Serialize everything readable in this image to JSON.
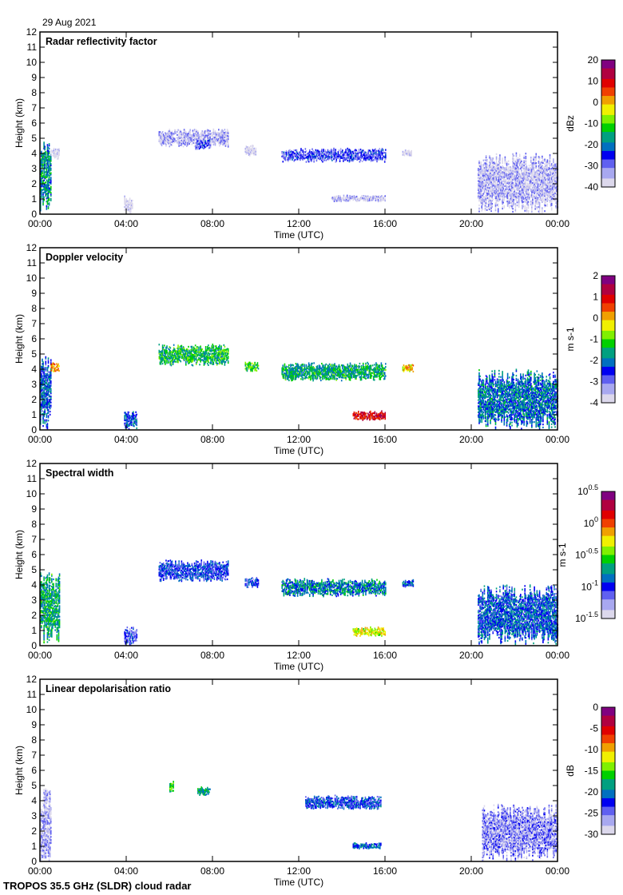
{
  "date": "29 Aug 2021",
  "footer": "TROPOS 35.5 GHz (SLDR) cloud radar",
  "colormap": [
    "#dcd8ec",
    "#a8a8f0",
    "#6060f0",
    "#0000f0",
    "#0070c0",
    "#00a080",
    "#00d000",
    "#80f000",
    "#f0f000",
    "#f0a000",
    "#f04000",
    "#e00000",
    "#b00040",
    "#800080"
  ],
  "chart_data": [
    {
      "type": "heatmap",
      "title": "Radar reflectivity factor",
      "xlabel": "Time (UTC)",
      "ylabel": "Height (km)",
      "xlim": [
        0,
        24
      ],
      "ylim": [
        0,
        12
      ],
      "xticks": [
        "00:00",
        "04:00",
        "08:00",
        "12:00",
        "16:00",
        "20:00",
        "00:00"
      ],
      "yticks": [
        "0",
        "1",
        "2",
        "3",
        "4",
        "5",
        "6",
        "7",
        "8",
        "9",
        "10",
        "11",
        "12"
      ],
      "colorbar": {
        "label": "dBz",
        "range": [
          -40,
          20
        ],
        "ticks": [
          "20",
          "10",
          "0",
          "-10",
          "-20",
          "-30",
          "-40"
        ]
      },
      "echo_regions": [
        {
          "t": [
            0.0,
            0.5
          ],
          "h": [
            0.2,
            4.8
          ],
          "value": -18
        },
        {
          "t": [
            0.5,
            0.9
          ],
          "h": [
            3.6,
            4.4
          ],
          "value": -39
        },
        {
          "t": [
            3.9,
            4.3
          ],
          "h": [
            0.0,
            1.2
          ],
          "value": -39
        },
        {
          "t": [
            5.5,
            8.7
          ],
          "h": [
            4.4,
            5.6
          ],
          "value": -35
        },
        {
          "t": [
            7.2,
            7.9
          ],
          "h": [
            4.2,
            4.9
          ],
          "value": -28
        },
        {
          "t": [
            9.5,
            10.0
          ],
          "h": [
            3.8,
            4.5
          ],
          "value": -38
        },
        {
          "t": [
            11.2,
            16.0
          ],
          "h": [
            3.4,
            4.3
          ],
          "value": -28
        },
        {
          "t": [
            13.5,
            16.0
          ],
          "h": [
            0.8,
            1.2
          ],
          "value": -36
        },
        {
          "t": [
            16.8,
            17.2
          ],
          "h": [
            3.8,
            4.2
          ],
          "value": -39
        },
        {
          "t": [
            20.3,
            24.0
          ],
          "h": [
            0.0,
            4.0
          ],
          "value": -35
        }
      ]
    },
    {
      "type": "heatmap",
      "title": "Doppler velocity",
      "xlabel": "Time (UTC)",
      "ylabel": "Height (km)",
      "xlim": [
        0,
        24
      ],
      "ylim": [
        0,
        12
      ],
      "xticks": [
        "00:00",
        "04:00",
        "08:00",
        "12:00",
        "16:00",
        "20:00",
        "00:00"
      ],
      "yticks": [
        "0",
        "1",
        "2",
        "3",
        "4",
        "5",
        "6",
        "7",
        "8",
        "9",
        "10",
        "11",
        "12"
      ],
      "colorbar": {
        "label": "m s-1",
        "range": [
          -4,
          2
        ],
        "ticks": [
          "2",
          "1",
          "0",
          "-1",
          "-2",
          "-3",
          "-4"
        ]
      },
      "echo_regions": [
        {
          "t": [
            0.0,
            0.5
          ],
          "h": [
            0.0,
            4.9
          ],
          "value": -2.2
        },
        {
          "t": [
            0.5,
            0.9
          ],
          "h": [
            3.8,
            4.4
          ],
          "value": 0.2
        },
        {
          "t": [
            3.9,
            4.5
          ],
          "h": [
            0.0,
            1.2
          ],
          "value": -2.2
        },
        {
          "t": [
            5.5,
            8.7
          ],
          "h": [
            4.2,
            5.6
          ],
          "value": -1.4
        },
        {
          "t": [
            9.5,
            10.1
          ],
          "h": [
            3.8,
            4.5
          ],
          "value": -1.2
        },
        {
          "t": [
            11.2,
            16.0
          ],
          "h": [
            3.2,
            4.4
          ],
          "value": -1.6
        },
        {
          "t": [
            14.5,
            16.0
          ],
          "h": [
            0.6,
            1.2
          ],
          "value": 1.0
        },
        {
          "t": [
            16.8,
            17.3
          ],
          "h": [
            3.8,
            4.3
          ],
          "value": -0.1
        },
        {
          "t": [
            20.3,
            24.0
          ],
          "h": [
            0.0,
            4.0
          ],
          "value": -2.0
        }
      ]
    },
    {
      "type": "heatmap",
      "title": "Spectral width",
      "xlabel": "Time (UTC)",
      "ylabel": "Height (km)",
      "xlim": [
        0,
        24
      ],
      "ylim": [
        0,
        12
      ],
      "xticks": [
        "00:00",
        "04:00",
        "08:00",
        "12:00",
        "16:00",
        "20:00",
        "00:00"
      ],
      "yticks": [
        "0",
        "1",
        "2",
        "3",
        "4",
        "5",
        "6",
        "7",
        "8",
        "9",
        "10",
        "11",
        "12"
      ],
      "colorbar": {
        "label": "m s-1",
        "scale": "log",
        "range": [
          -1.5,
          0.5
        ],
        "ticks": [
          "0.5",
          "0",
          "-0.5",
          "-1",
          "-1.5"
        ]
      },
      "echo_regions": [
        {
          "t": [
            0.0,
            0.9
          ],
          "h": [
            0.0,
            4.9
          ],
          "value": -0.7
        },
        {
          "t": [
            3.9,
            4.5
          ],
          "h": [
            0.0,
            1.2
          ],
          "value": -1.1
        },
        {
          "t": [
            5.5,
            8.7
          ],
          "h": [
            4.2,
            5.6
          ],
          "value": -1.0
        },
        {
          "t": [
            9.5,
            10.1
          ],
          "h": [
            3.8,
            4.5
          ],
          "value": -1.0
        },
        {
          "t": [
            11.2,
            16.0
          ],
          "h": [
            3.2,
            4.4
          ],
          "value": -0.8
        },
        {
          "t": [
            14.5,
            16.0
          ],
          "h": [
            0.6,
            1.2
          ],
          "value": -0.3
        },
        {
          "t": [
            16.8,
            17.3
          ],
          "h": [
            3.8,
            4.3
          ],
          "value": -0.9
        },
        {
          "t": [
            20.3,
            24.0
          ],
          "h": [
            0.0,
            4.0
          ],
          "value": -0.9
        }
      ]
    },
    {
      "type": "heatmap",
      "title": "Linear depolarisation ratio",
      "xlabel": "Time (UTC)",
      "ylabel": "Height (km)",
      "xlim": [
        0,
        24
      ],
      "ylim": [
        0,
        12
      ],
      "xticks": [
        "00:00",
        "04:00",
        "08:00",
        "12:00",
        "16:00",
        "20:00",
        "00:00"
      ],
      "yticks": [
        "0",
        "1",
        "2",
        "3",
        "4",
        "5",
        "6",
        "7",
        "8",
        "9",
        "10",
        "11",
        "12"
      ],
      "colorbar": {
        "label": "dB",
        "range": [
          -30,
          0
        ],
        "ticks": [
          "0",
          "-5",
          "-10",
          "-15",
          "-20",
          "-25",
          "-30"
        ]
      },
      "echo_regions": [
        {
          "t": [
            0.0,
            0.5
          ],
          "h": [
            0.0,
            4.8
          ],
          "value": -27
        },
        {
          "t": [
            6.0,
            6.2
          ],
          "h": [
            4.5,
            5.3
          ],
          "value": -16
        },
        {
          "t": [
            7.3,
            7.9
          ],
          "h": [
            4.3,
            4.9
          ],
          "value": -18
        },
        {
          "t": [
            12.3,
            15.8
          ],
          "h": [
            3.4,
            4.3
          ],
          "value": -22
        },
        {
          "t": [
            14.5,
            15.8
          ],
          "h": [
            0.8,
            1.2
          ],
          "value": -21
        },
        {
          "t": [
            20.5,
            24.0
          ],
          "h": [
            0.0,
            3.8
          ],
          "value": -26
        }
      ]
    }
  ]
}
